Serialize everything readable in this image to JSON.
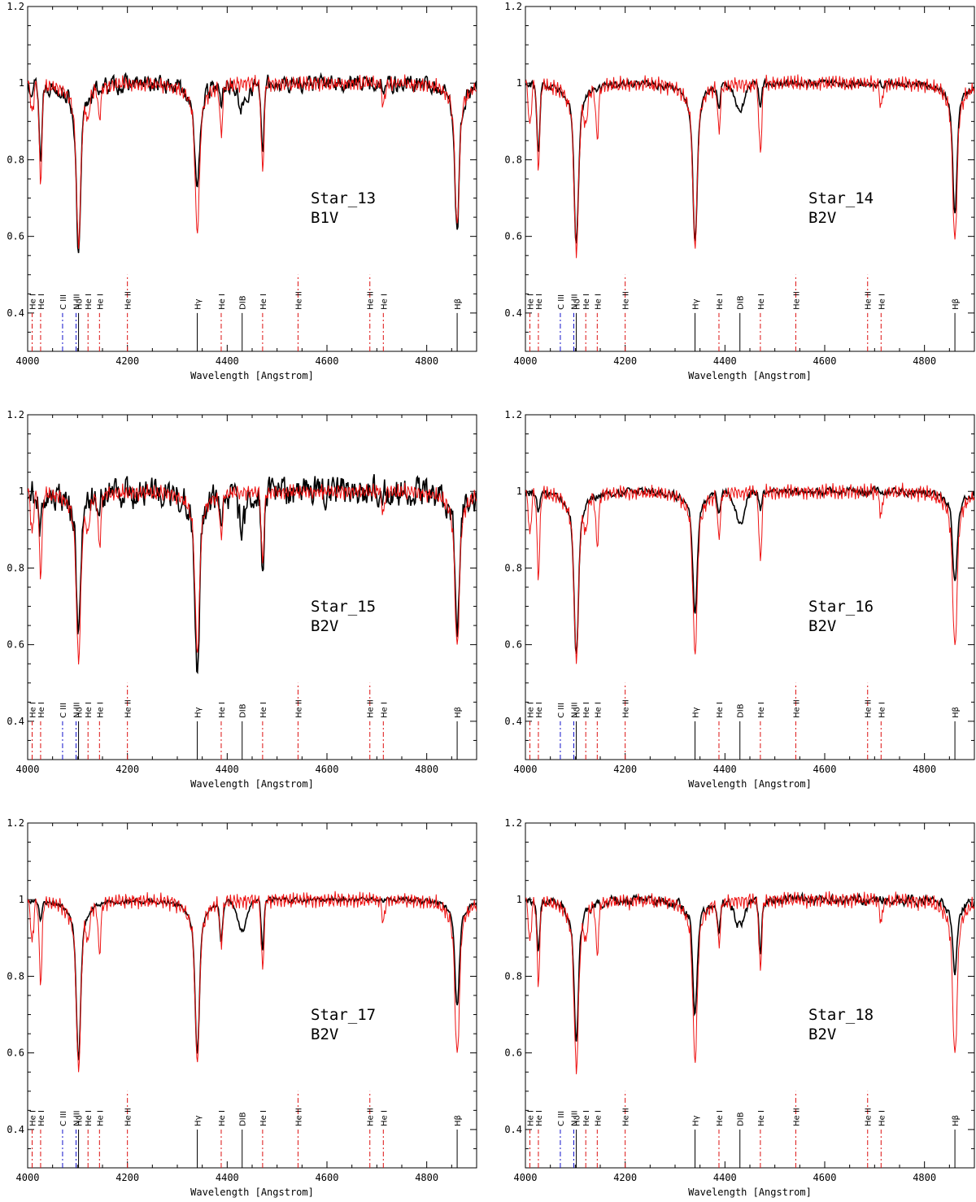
{
  "figure": {
    "common": {
      "xlabel": "Wavelength [Angstrom]",
      "xlim": [
        4000,
        4900
      ],
      "ylim": [
        0.3,
        1.2
      ],
      "xticks": [
        4000,
        4200,
        4400,
        4600,
        4800
      ],
      "yticks": [
        0.4,
        0.6,
        0.8,
        1,
        1.2
      ],
      "ytick_labels": [
        "0.4",
        "0.6",
        "0.8",
        "1",
        "1.2"
      ],
      "observed_color": "#000000",
      "model_color": "#ee1111",
      "line_colors": {
        "black": "#000000",
        "red": "#dd1111",
        "blue": "#1111cc"
      }
    },
    "lines": [
      {
        "label": "He I",
        "wl": 4009,
        "color": "red"
      },
      {
        "label": "He I",
        "wl": 4026,
        "color": "red"
      },
      {
        "label": "C III",
        "wl": 4070,
        "color": "blue"
      },
      {
        "label": "N III",
        "wl": 4097,
        "color": "blue"
      },
      {
        "label": "Hδ",
        "wl": 4102,
        "color": "black"
      },
      {
        "label": "He I",
        "wl": 4121,
        "color": "red"
      },
      {
        "label": "He I",
        "wl": 4144,
        "color": "red"
      },
      {
        "label": "He II",
        "wl": 4200,
        "color": "red"
      },
      {
        "label": "Hγ",
        "wl": 4340,
        "color": "black"
      },
      {
        "label": "He I",
        "wl": 4388,
        "color": "red"
      },
      {
        "label": "DIB",
        "wl": 4430,
        "color": "black"
      },
      {
        "label": "He I",
        "wl": 4471,
        "color": "red"
      },
      {
        "label": "He II",
        "wl": 4542,
        "color": "red"
      },
      {
        "label": "He II",
        "wl": 4686,
        "color": "red"
      },
      {
        "label": "He I",
        "wl": 4713,
        "color": "red"
      },
      {
        "label": "Hβ",
        "wl": 4861,
        "color": "black"
      }
    ]
  },
  "chart_data": [
    {
      "type": "line",
      "star": "Star_13",
      "sptype": "B1V",
      "noise": 0.035,
      "seed": 13,
      "observed_depths": {
        "Hd": 0.45,
        "Hg": 0.3,
        "Hb": 0.37,
        "HeI4026": 0.2,
        "HeI4471": 0.2,
        "HeI4388": 0.05,
        "DIB": 0.06
      },
      "model_depths": {
        "Hd": 0.42,
        "Hg": 0.39,
        "Hb": 0.37,
        "HeI4026": 0.25,
        "HeI4471": 0.23,
        "HeI4388": 0.12,
        "HeI4009": 0.08,
        "HeI4144": 0.08,
        "HeI4121": 0.06,
        "HeI4713": 0.06
      }
    },
    {
      "type": "line",
      "star": "Star_14",
      "sptype": "B2V",
      "noise": 0.015,
      "seed": 14,
      "observed_depths": {
        "Hd": 0.42,
        "Hg": 0.41,
        "Hb": 0.34,
        "HeI4026": 0.18,
        "HeI4471": 0.05,
        "HeI4388": 0.05,
        "DIB": 0.07
      },
      "model_depths": {
        "Hd": 0.44,
        "Hg": 0.42,
        "Hb": 0.41,
        "HeI4026": 0.21,
        "HeI4471": 0.18,
        "HeI4388": 0.11,
        "HeI4009": 0.11,
        "HeI4144": 0.13,
        "HeI4121": 0.07,
        "HeI4713": 0.06
      }
    },
    {
      "type": "line",
      "star": "Star_15",
      "sptype": "B2V",
      "noise": 0.06,
      "seed": 15,
      "observed_depths": {
        "Hd": 0.38,
        "Hg": 0.47,
        "Hb": 0.34,
        "HeI4026": 0.1,
        "HeI4471": 0.22,
        "HeI4388": 0.1,
        "DIB": 0.08
      },
      "model_depths": {
        "Hd": 0.44,
        "Hg": 0.42,
        "Hb": 0.41,
        "HeI4026": 0.21,
        "HeI4471": 0.18,
        "HeI4388": 0.11,
        "HeI4009": 0.11,
        "HeI4144": 0.13,
        "HeI4121": 0.07,
        "HeI4713": 0.06
      }
    },
    {
      "type": "line",
      "star": "Star_16",
      "sptype": "B2V",
      "noise": 0.015,
      "seed": 16,
      "observed_depths": {
        "Hd": 0.43,
        "Hg": 0.32,
        "Hb": 0.24,
        "HeI4026": 0.05,
        "HeI4471": 0.05,
        "HeI4388": 0.05,
        "DIB": 0.08
      },
      "model_depths": {
        "Hd": 0.44,
        "Hg": 0.42,
        "Hb": 0.41,
        "HeI4026": 0.21,
        "HeI4471": 0.18,
        "HeI4388": 0.11,
        "HeI4009": 0.11,
        "HeI4144": 0.13,
        "HeI4121": 0.07,
        "HeI4713": 0.06
      }
    },
    {
      "type": "line",
      "star": "Star_17",
      "sptype": "B2V",
      "noise": 0.01,
      "seed": 17,
      "observed_depths": {
        "Hd": 0.42,
        "Hg": 0.4,
        "Hb": 0.28,
        "HeI4026": 0.05,
        "HeI4471": 0.13,
        "HeI4388": 0.1,
        "DIB": 0.08
      },
      "model_depths": {
        "Hd": 0.44,
        "Hg": 0.42,
        "Hb": 0.41,
        "HeI4026": 0.21,
        "HeI4471": 0.18,
        "HeI4388": 0.11,
        "HeI4009": 0.11,
        "HeI4144": 0.13,
        "HeI4121": 0.07,
        "HeI4713": 0.06
      }
    },
    {
      "type": "line",
      "star": "Star_18",
      "sptype": "B2V",
      "noise": 0.02,
      "seed": 18,
      "observed_depths": {
        "Hd": 0.38,
        "Hg": 0.3,
        "Hb": 0.19,
        "HeI4026": 0.14,
        "HeI4471": 0.14,
        "HeI4388": 0.08,
        "DIB": 0.07
      },
      "model_depths": {
        "Hd": 0.44,
        "Hg": 0.42,
        "Hb": 0.41,
        "HeI4026": 0.21,
        "HeI4471": 0.18,
        "HeI4388": 0.11,
        "HeI4009": 0.11,
        "HeI4144": 0.13,
        "HeI4121": 0.07,
        "HeI4713": 0.06
      }
    }
  ]
}
